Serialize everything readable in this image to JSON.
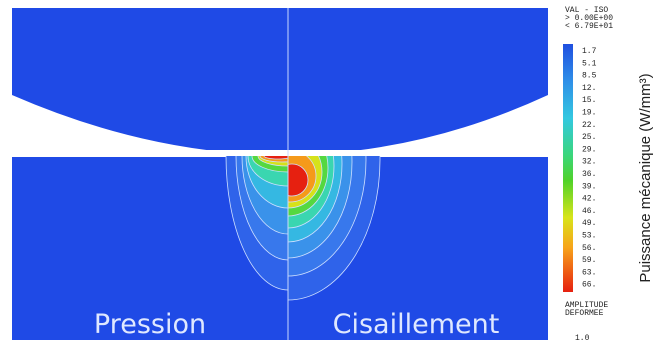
{
  "figure": {
    "panels": [
      "Pression",
      "Cisaillement"
    ],
    "legend": {
      "header": [
        "VAL - ISO",
        "> 0.00E+00",
        "< 6.79E+01"
      ],
      "levels": [
        "1.7",
        "5.1",
        "8.5",
        "12.",
        "15.",
        "19.",
        "22.",
        "25.",
        "29.",
        "32.",
        "36.",
        "39.",
        "42.",
        "46.",
        "49.",
        "53.",
        "56.",
        "59.",
        "63.",
        "66."
      ],
      "footer": [
        "AMPLITUDE",
        "DEFORMEE"
      ],
      "scale": "1.0"
    },
    "axis_label": "Puissance mécanique (W/mm³)"
  }
}
